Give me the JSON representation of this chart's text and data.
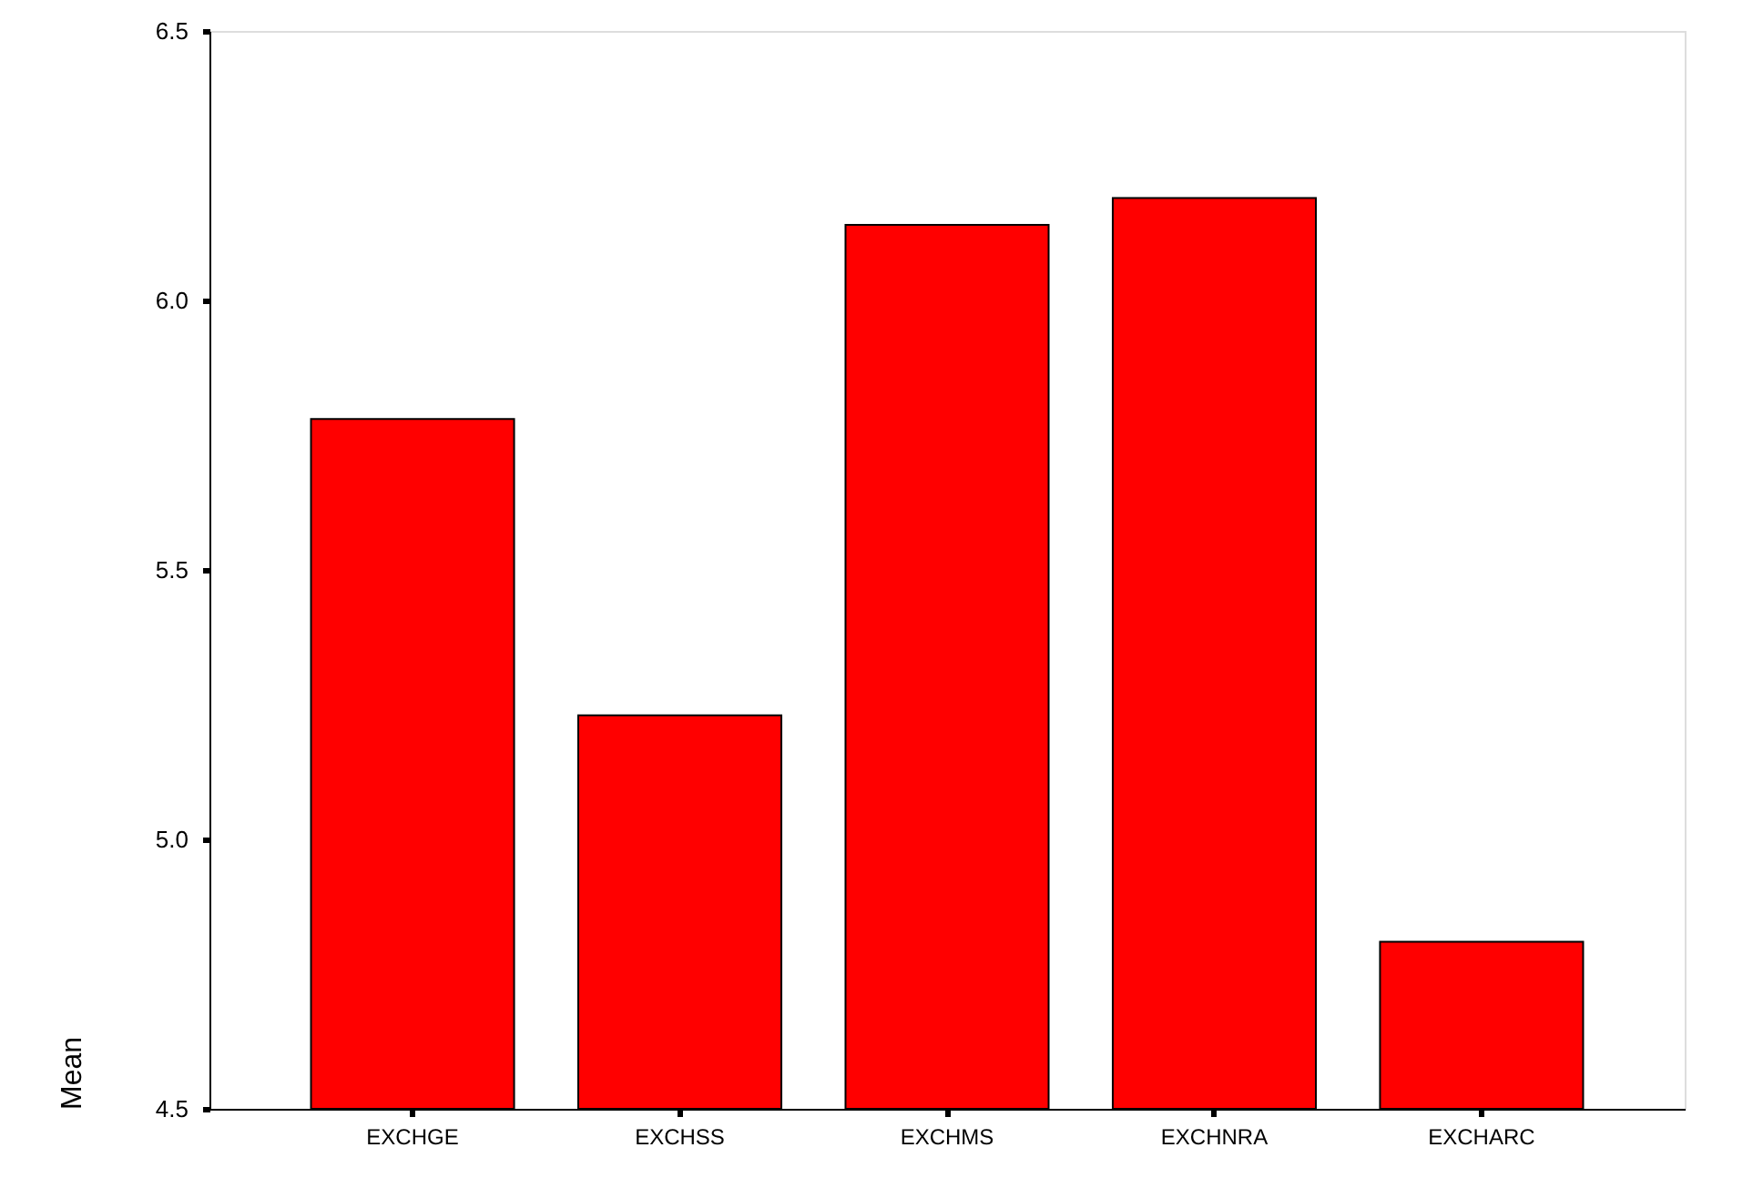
{
  "chart_data": {
    "type": "bar",
    "ylabel": "Mean",
    "categories": [
      "EXCHGE",
      "EXCHSS",
      "EXCHMS",
      "EXCHNRA",
      "EXCHARC"
    ],
    "values": [
      5.78,
      5.23,
      6.14,
      6.19,
      4.81
    ],
    "color": "#ff0000",
    "ylim": [
      4.5,
      6.5
    ],
    "yticks": [
      {
        "value": 4.5,
        "label": "4.5"
      },
      {
        "value": 5.0,
        "label": "5.0"
      },
      {
        "value": 5.5,
        "label": "5.5"
      },
      {
        "value": 6.0,
        "label": "6.0"
      },
      {
        "value": 6.5,
        "label": "6.5"
      }
    ],
    "grid": false
  }
}
